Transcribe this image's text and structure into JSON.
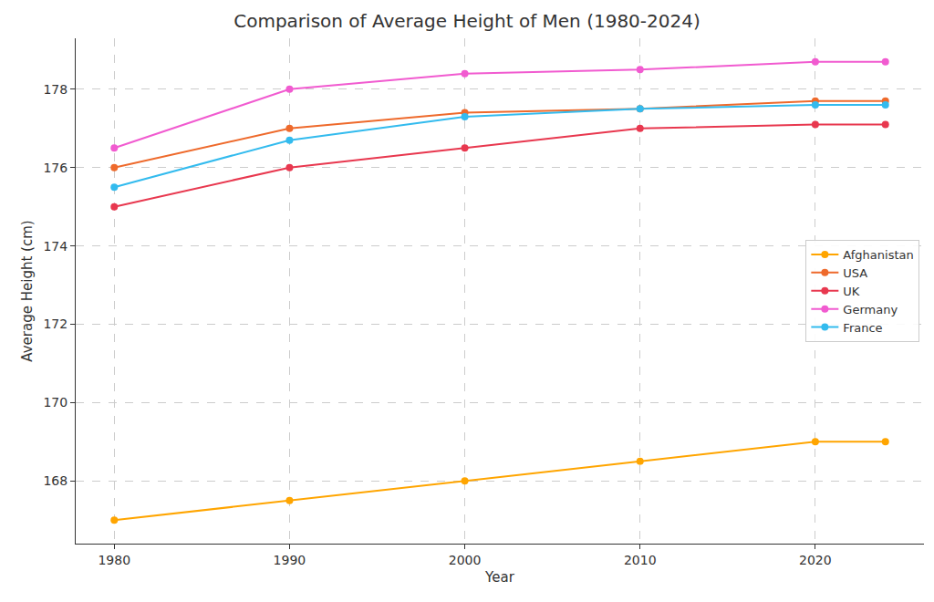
{
  "chart_data": {
    "type": "line",
    "title": "Comparison of Average Height of Men (1980-2024)",
    "x_label": "Year",
    "y_label": "Average Height (cm)",
    "x": [
      1980,
      1990,
      2000,
      2010,
      2020,
      2024
    ],
    "series": [
      {
        "name": "Afghanistan",
        "color": "#ffa500",
        "values": [
          167,
          167.5,
          168,
          168.5,
          169,
          169
        ]
      },
      {
        "name": "USA",
        "color": "#ee6a2c",
        "values": [
          176,
          177,
          177.4,
          177.5,
          177.7,
          177.7
        ]
      },
      {
        "name": "UK",
        "color": "#e8384f",
        "values": [
          175,
          176,
          176.5,
          177,
          177.1,
          177.1
        ]
      },
      {
        "name": "Germany",
        "color": "#f15bd0",
        "values": [
          176.5,
          178,
          178.4,
          178.5,
          178.7,
          178.7
        ]
      },
      {
        "name": "France",
        "color": "#33bbee",
        "values": [
          175.5,
          176.7,
          177.3,
          177.5,
          177.6,
          177.6
        ]
      }
    ],
    "xlim": [
      1977.8,
      2026.2
    ],
    "xticks": [
      1980,
      1990,
      2000,
      2010,
      2020
    ],
    "ylim": [
      166.4,
      179.3
    ],
    "yticks": [
      168,
      170,
      172,
      174,
      176,
      178
    ],
    "grid": true,
    "legend": "center right",
    "marker": "circle",
    "line_style": "solid"
  }
}
